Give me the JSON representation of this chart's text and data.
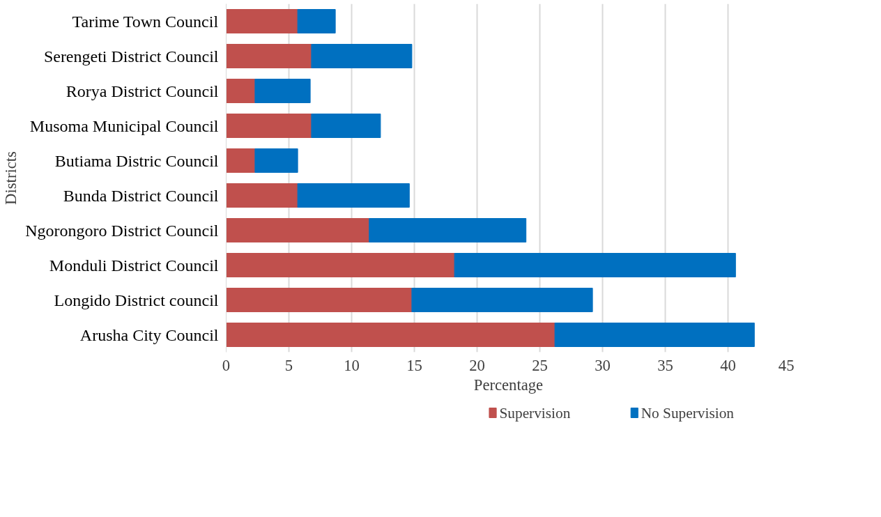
{
  "chart_data": {
    "type": "bar",
    "orientation": "horizontal",
    "stacked": true,
    "xlabel": "Percentage",
    "ylabel": "Districts",
    "categories": [
      "Tarime Town Council",
      "Serengeti District Council",
      "Rorya District Council",
      "Musoma Municipal Council",
      "Butiama Distric Council",
      "Bunda District Council",
      "Ngorongoro District Council",
      "Monduli District Council",
      "Longido District council",
      "Arusha City Council"
    ],
    "series": [
      {
        "name": "Supervision",
        "color": "#c0504d",
        "values": [
          5.7,
          6.8,
          2.3,
          6.8,
          2.3,
          5.7,
          11.4,
          18.2,
          14.8,
          26.2
        ]
      },
      {
        "name": "No Supervision",
        "color": "#0070c0",
        "values": [
          3.0,
          8.0,
          4.4,
          5.5,
          3.4,
          8.9,
          12.5,
          22.4,
          14.4,
          15.9
        ]
      }
    ],
    "xlim": [
      0,
      45
    ],
    "xticks": [
      0,
      5,
      10,
      15,
      20,
      25,
      30,
      35,
      40,
      45
    ],
    "grid": "x",
    "legend": "bottom"
  }
}
